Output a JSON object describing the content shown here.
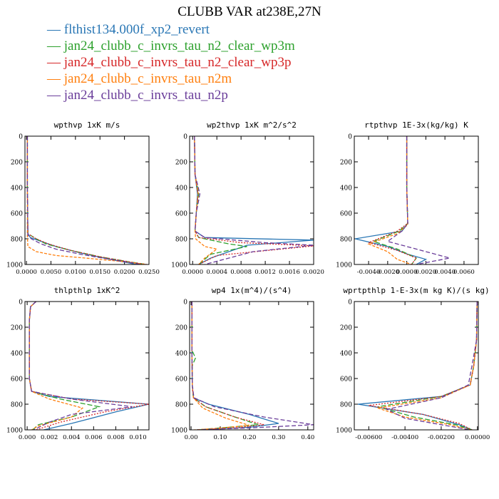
{
  "title": "CLUBB VAR at238E,27N",
  "legend": [
    {
      "label": "flthist134.000f_xp2_revert",
      "color": "#2a77b5"
    },
    {
      "label": "jan24_clubb_c_invrs_tau_n2_clear_wp3m",
      "color": "#2ca02c"
    },
    {
      "label": "jan24_clubb_c_invrs_tau_n2_clear_wp3p",
      "color": "#d62728"
    },
    {
      "label": "jan24_clubb_c_invrs_tau_n2m",
      "color": "#ff7f0e"
    },
    {
      "label": "jan24_clubb_c_invrs_tau_n2p",
      "color": "#6a3d9a"
    }
  ],
  "chart_data": [
    {
      "type": "line",
      "title": "wpthvp  1xK m/s",
      "xlim": [
        -0.0003,
        0.025
      ],
      "ylim": [
        1000,
        0
      ],
      "xticks": [
        "0.0000",
        "0.0050",
        "0.0100",
        "0.0150",
        "0.0200",
        "0.0250"
      ],
      "xtickvals": [
        0,
        0.005,
        0.01,
        0.015,
        0.02,
        0.025
      ],
      "yticks": [
        "0",
        "200",
        "400",
        "600",
        "800",
        "1000"
      ],
      "series": [
        {
          "name": "flthist134.000f_xp2_revert",
          "x": [
            0.0002,
            0.0002,
            0.0003,
            0.0008,
            0.003,
            0.006,
            0.011,
            0.017,
            0.0225
          ],
          "y": [
            0,
            400,
            760,
            790,
            820,
            860,
            910,
            960,
            1000
          ]
        },
        {
          "name": "jan24_clubb_c_invrs_tau_n2_clear_wp3m",
          "x": [
            0.0002,
            0.0002,
            0.0003,
            0.002,
            0.004,
            0.009,
            0.015,
            0.021,
            0.0245
          ],
          "y": [
            0,
            400,
            760,
            800,
            840,
            890,
            940,
            980,
            1000
          ]
        },
        {
          "name": "jan24_clubb_c_invrs_tau_n2_clear_wp3p",
          "x": [
            0.0002,
            0.0002,
            0.0003,
            0.002,
            0.0045,
            0.009,
            0.015,
            0.021,
            0.0245
          ],
          "y": [
            0,
            400,
            760,
            800,
            840,
            890,
            940,
            980,
            1000
          ]
        },
        {
          "name": "jan24_clubb_c_invrs_tau_n2m",
          "x": [
            0.0002,
            0.0002,
            0.0002,
            0.0003,
            0.002,
            0.006,
            0.012,
            0.019,
            0.0245
          ],
          "y": [
            0,
            400,
            780,
            860,
            900,
            930,
            950,
            975,
            1000
          ]
        },
        {
          "name": "jan24_clubb_c_invrs_tau_n2p",
          "x": [
            0.0002,
            0.0002,
            0.0003,
            0.001,
            0.003,
            0.006,
            0.011,
            0.017,
            0.0235
          ],
          "y": [
            0,
            400,
            770,
            800,
            840,
            880,
            920,
            960,
            1000
          ]
        }
      ]
    },
    {
      "type": "line",
      "title": "wp2thvp  1xK m^2/s^2",
      "xlim": [
        -5e-05,
        0.002
      ],
      "ylim": [
        1000,
        0
      ],
      "xticks": [
        "0.0000",
        "0.0004",
        "0.0008",
        "0.0012",
        "0.0016",
        "0.0020"
      ],
      "xtickvals": [
        0,
        0.0004,
        0.0008,
        0.0012,
        0.0016,
        0.002
      ],
      "yticks": [
        "0",
        "200",
        "400",
        "600",
        "800",
        "1000"
      ],
      "series": [
        {
          "name": "flthist134.000f_xp2_revert",
          "x": [
            3e-05,
            4e-05,
            8e-05,
            6e-05,
            4e-05,
            0.0002,
            0.002,
            0.0009,
            0.0003,
            0.0001
          ],
          "y": [
            0,
            300,
            450,
            600,
            740,
            790,
            810,
            850,
            950,
            1000
          ]
        },
        {
          "name": "jan24_clubb_c_invrs_tau_n2_clear_wp3m",
          "x": [
            3e-05,
            4e-05,
            0.0001,
            6e-05,
            4e-05,
            0.0001,
            0.0006,
            0.0009,
            0.0003,
            0.0001
          ],
          "y": [
            0,
            300,
            450,
            600,
            740,
            790,
            840,
            860,
            920,
            1000
          ]
        },
        {
          "name": "jan24_clubb_c_invrs_tau_n2_clear_wp3p",
          "x": [
            3e-05,
            4e-05,
            9e-05,
            6e-05,
            4e-05,
            0.0001,
            0.0008,
            0.002,
            0.0004,
            0.0001
          ],
          "y": [
            0,
            300,
            450,
            600,
            740,
            790,
            830,
            855,
            930,
            1000
          ]
        },
        {
          "name": "jan24_clubb_c_invrs_tau_n2m",
          "x": [
            3e-05,
            4e-05,
            9e-05,
            6e-05,
            4e-05,
            5e-05,
            0.0002,
            0.0004,
            0.0002,
            0.0001
          ],
          "y": [
            0,
            300,
            450,
            600,
            740,
            800,
            860,
            880,
            950,
            1000
          ]
        },
        {
          "name": "jan24_clubb_c_invrs_tau_n2p",
          "x": [
            3e-05,
            4e-05,
            0.00012,
            6e-05,
            4e-05,
            0.0002,
            0.0012,
            0.002,
            0.001,
            0.0002
          ],
          "y": [
            0,
            300,
            450,
            600,
            740,
            790,
            830,
            850,
            900,
            1000
          ]
        }
      ]
    },
    {
      "type": "line",
      "title": "rtpthvp  1E-3x(kg/kg) K",
      "xlim": [
        -0.0055,
        0.0075
      ],
      "ylim": [
        1000,
        0
      ],
      "xticks": [
        "-0.0040",
        "-0.0020",
        "0.0000",
        "0.0020",
        "0.0040",
        "0.0060"
      ],
      "xtickvals": [
        -0.004,
        -0.002,
        0,
        0.002,
        0.004,
        0.006
      ],
      "yticks": [
        "0",
        "200",
        "400",
        "600",
        "800",
        "1000"
      ],
      "series": [
        {
          "name": "flthist134.000f_xp2_revert",
          "x": [
            0,
            0,
            0.0001,
            -0.0005,
            -0.0054,
            -0.002,
            0.0001,
            0.002,
            0.001
          ],
          "y": [
            0,
            400,
            680,
            740,
            800,
            860,
            920,
            960,
            1000
          ]
        },
        {
          "name": "jan24_clubb_c_invrs_tau_n2_clear_wp3m",
          "x": [
            0,
            0,
            0.0001,
            -0.0008,
            -0.0035,
            -0.001,
            0.001,
            0.0005
          ],
          "y": [
            0,
            400,
            680,
            740,
            820,
            880,
            950,
            1000
          ]
        },
        {
          "name": "jan24_clubb_c_invrs_tau_n2_clear_wp3p",
          "x": [
            0,
            0,
            0.0001,
            -0.001,
            -0.004,
            -0.001,
            0.001,
            0.0005
          ],
          "y": [
            0,
            400,
            680,
            740,
            830,
            890,
            950,
            1000
          ]
        },
        {
          "name": "jan24_clubb_c_invrs_tau_n2m",
          "x": [
            0,
            0,
            0.0001,
            -0.001,
            -0.004,
            -0.002,
            -0.001,
            0.0005
          ],
          "y": [
            0,
            400,
            690,
            760,
            840,
            900,
            960,
            1000
          ]
        },
        {
          "name": "jan24_clubb_c_invrs_tau_n2p",
          "x": [
            0,
            0,
            0.0001,
            -0.0005,
            -0.002,
            0.001,
            0.0045,
            0.001
          ],
          "y": [
            0,
            400,
            680,
            740,
            820,
            880,
            950,
            1000
          ]
        }
      ]
    },
    {
      "type": "line",
      "title": "thlpthlp  1xK^2",
      "xlim": [
        -0.0002,
        0.011
      ],
      "ylim": [
        1000,
        0
      ],
      "xticks": [
        "0.000",
        "0.002",
        "0.004",
        "0.006",
        "0.008",
        "0.010"
      ],
      "xtickvals": [
        0,
        0.002,
        0.004,
        0.006,
        0.008,
        0.01
      ],
      "yticks": [
        "0",
        "200",
        "400",
        "600",
        "800",
        "1000"
      ],
      "series": [
        {
          "name": "flthist134.000f_xp2_revert",
          "x": [
            0.0008,
            0.0003,
            0.0002,
            0.0002,
            0.0004,
            0.002,
            0.011,
            0.008,
            0.004,
            0.0015
          ],
          "y": [
            0,
            40,
            150,
            600,
            700,
            740,
            800,
            860,
            950,
            1000
          ]
        },
        {
          "name": "jan24_clubb_c_invrs_tau_n2_clear_wp3m",
          "x": [
            0.0008,
            0.0003,
            0.0002,
            0.0002,
            0.0004,
            0.003,
            0.0065,
            0.004,
            0.001,
            0.0005
          ],
          "y": [
            0,
            40,
            150,
            600,
            700,
            760,
            820,
            900,
            960,
            1000
          ]
        },
        {
          "name": "jan24_clubb_c_invrs_tau_n2_clear_wp3p",
          "x": [
            0.0008,
            0.0003,
            0.0002,
            0.0002,
            0.0004,
            0.004,
            0.011,
            0.007,
            0.003,
            0.0008
          ],
          "y": [
            0,
            40,
            150,
            600,
            700,
            760,
            800,
            860,
            940,
            1000
          ]
        },
        {
          "name": "jan24_clubb_c_invrs_tau_n2m",
          "x": [
            0.0008,
            0.0003,
            0.0002,
            0.0002,
            0.0004,
            0.002,
            0.005,
            0.004,
            0.001,
            0.0004
          ],
          "y": [
            0,
            40,
            150,
            600,
            700,
            760,
            830,
            900,
            970,
            1000
          ]
        },
        {
          "name": "jan24_clubb_c_invrs_tau_n2p",
          "x": [
            0.0008,
            0.0003,
            0.0002,
            0.0002,
            0.0004,
            0.004,
            0.0095,
            0.004,
            0.002,
            0.0006
          ],
          "y": [
            0,
            40,
            150,
            600,
            700,
            760,
            820,
            880,
            940,
            1000
          ]
        }
      ]
    },
    {
      "type": "line",
      "title": "wp4  1x(m^4)/(s^4)",
      "xlim": [
        -0.005,
        0.42
      ],
      "ylim": [
        1000,
        0
      ],
      "xticks": [
        "0.00",
        "0.10",
        "0.20",
        "0.30",
        "0.40"
      ],
      "xtickvals": [
        0,
        0.1,
        0.2,
        0.3,
        0.4
      ],
      "yticks": [
        "0",
        "200",
        "400",
        "600",
        "800",
        "1000"
      ],
      "series": [
        {
          "name": "flthist134.000f_xp2_revert",
          "x": [
            0.003,
            0.003,
            0.004,
            0.008,
            0.06,
            0.2,
            0.3,
            0.2,
            0.02
          ],
          "y": [
            0,
            400,
            650,
            750,
            800,
            880,
            950,
            980,
            1000
          ]
        },
        {
          "name": "jan24_clubb_c_invrs_tau_n2_clear_wp3m",
          "x": [
            0.003,
            0.003,
            0.015,
            0.004,
            0.004,
            0.008,
            0.05,
            0.15,
            0.23,
            0.1,
            0.02
          ],
          "y": [
            0,
            380,
            440,
            500,
            650,
            750,
            820,
            900,
            960,
            985,
            1000
          ]
        },
        {
          "name": "jan24_clubb_c_invrs_tau_n2_clear_wp3p",
          "x": [
            0.003,
            0.003,
            0.004,
            0.008,
            0.05,
            0.15,
            0.25,
            0.15,
            0.02
          ],
          "y": [
            0,
            400,
            650,
            750,
            820,
            900,
            960,
            985,
            1000
          ]
        },
        {
          "name": "jan24_clubb_c_invrs_tau_n2m",
          "x": [
            0.003,
            0.003,
            0.004,
            0.008,
            0.04,
            0.12,
            0.2,
            0.08,
            0.01
          ],
          "y": [
            0,
            400,
            650,
            750,
            830,
            910,
            965,
            990,
            1000
          ]
        },
        {
          "name": "jan24_clubb_c_invrs_tau_n2p",
          "x": [
            0.003,
            0.003,
            0.004,
            0.01,
            0.08,
            0.25,
            0.42,
            0.2,
            0.02
          ],
          "y": [
            0,
            400,
            650,
            750,
            820,
            900,
            960,
            985,
            1000
          ]
        }
      ]
    },
    {
      "type": "line",
      "title": "wprtpthlp  1-E-3x(m kg K)/(s kg)",
      "xlim": [
        -0.0068,
        5e-05
      ],
      "ylim": [
        1000,
        0
      ],
      "xticks": [
        "-0.00600",
        "-0.00400",
        "-0.00200",
        "0.00000"
      ],
      "xtickvals": [
        -0.006,
        -0.004,
        -0.002,
        0
      ],
      "yticks": [
        "0",
        "200",
        "400",
        "600",
        "800",
        "1000"
      ],
      "series": [
        {
          "name": "flthist134.000f_xp2_revert",
          "x": [
            -2e-05,
            -5e-05,
            -0.0002,
            -0.0004,
            -0.002,
            -0.0066,
            -0.003,
            -0.001,
            -0.0003
          ],
          "y": [
            0,
            300,
            500,
            650,
            740,
            800,
            880,
            960,
            1000
          ]
        },
        {
          "name": "jan24_clubb_c_invrs_tau_n2_clear_wp3m",
          "x": [
            -2e-05,
            -5e-05,
            -0.0002,
            -0.0004,
            -0.002,
            -0.0055,
            -0.0035,
            -0.0012,
            -0.0003
          ],
          "y": [
            0,
            300,
            500,
            650,
            740,
            820,
            900,
            960,
            1000
          ]
        },
        {
          "name": "jan24_clubb_c_invrs_tau_n2_clear_wp3p",
          "x": [
            -2e-05,
            -5e-05,
            -0.0002,
            -0.0004,
            -0.002,
            -0.006,
            -0.003,
            -0.001,
            -0.0003
          ],
          "y": [
            0,
            300,
            500,
            650,
            740,
            810,
            880,
            950,
            1000
          ]
        },
        {
          "name": "jan24_clubb_c_invrs_tau_n2m",
          "x": [
            -2e-05,
            -5e-05,
            -0.0002,
            -0.0004,
            -0.002,
            -0.0055,
            -0.004,
            -0.0015,
            -0.0004
          ],
          "y": [
            0,
            300,
            500,
            650,
            750,
            830,
            900,
            960,
            1000
          ]
        },
        {
          "name": "jan24_clubb_c_invrs_tau_n2p",
          "x": [
            -2e-05,
            -5e-05,
            -0.0003,
            -0.0005,
            -0.002,
            -0.005,
            -0.004,
            -0.002,
            -0.0004
          ],
          "y": [
            0,
            300,
            500,
            650,
            750,
            840,
            910,
            960,
            1000
          ]
        }
      ]
    }
  ]
}
